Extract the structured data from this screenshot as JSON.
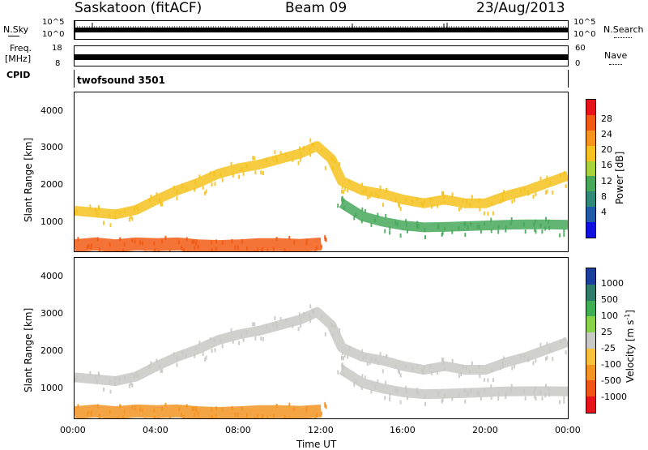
{
  "header": {
    "station": "Saskatoon (fitACF)",
    "beam": "Beam 09",
    "date": "23/Aug/2013"
  },
  "top_strip": {
    "nsky_label": "N.Sky",
    "nsearch_label": "N.Search",
    "freq_label_1": "Freq.",
    "freq_label_2": "[MHz]",
    "nave_label": "Nave",
    "cpid_label": "CPID",
    "cpid_value": "twofsound 3501",
    "noise_ticks_left": [
      "10^5",
      "10^0"
    ],
    "noise_ticks_right": [
      "10^5",
      "10^0"
    ],
    "freq_ticks": [
      "18",
      "8"
    ],
    "nave_ticks": [
      "60",
      "0"
    ]
  },
  "colorbars": {
    "power": {
      "label": "Power [dB]",
      "ticks": [
        "28",
        "24",
        "20",
        "16",
        "12",
        "8",
        "4"
      ],
      "colors": [
        "#e8121a",
        "#f25a14",
        "#f7941e",
        "#f5c21f",
        "#a8d43a",
        "#47a85a",
        "#2f8a7a",
        "#1f5ba8",
        "#1010e0"
      ]
    },
    "velocity": {
      "label": "Velocity [m s",
      "label_exp": "-1",
      "label_end": "]",
      "ticks": [
        "1000",
        "500",
        "100",
        "25",
        "-25",
        "-100",
        "-500",
        "-1000"
      ],
      "colors": [
        "#1b3f9c",
        "#2e7d6a",
        "#3fae55",
        "#88d24a",
        "#c8c8c4",
        "#f7c23a",
        "#f39423",
        "#f25416",
        "#e8121a"
      ]
    }
  },
  "chart_data": [
    {
      "type": "heatmap",
      "panel": "power",
      "ylabel": "Slant Range [km]",
      "y_ticks": [
        "4000",
        "3000",
        "2000",
        "1000"
      ],
      "ylim": [
        200,
        4500
      ],
      "xlim": [
        0,
        24
      ],
      "x_ticks": [
        "00:00",
        "04:00",
        "08:00",
        "12:00",
        "16:00",
        "20:00",
        "00:00"
      ],
      "series": [
        {
          "values": [
            [
              0,
              1300
            ],
            [
              1,
              1250
            ],
            [
              2,
              1200
            ],
            [
              3,
              1320
            ],
            [
              4,
              1600
            ],
            [
              5,
              1850
            ],
            [
              6,
              2050
            ],
            [
              7,
              2300
            ],
            [
              8,
              2450
            ],
            [
              9,
              2550
            ],
            [
              10,
              2700
            ],
            [
              11,
              2850
            ],
            [
              11.8,
              3050
            ],
            [
              12.5,
              2700
            ],
            [
              13,
              2100
            ],
            [
              14,
              1850
            ],
            [
              15,
              1750
            ],
            [
              16,
              1600
            ],
            [
              17,
              1500
            ],
            [
              18,
              1600
            ],
            [
              19,
              1500
            ],
            [
              20,
              1500
            ],
            [
              21,
              1700
            ],
            [
              22,
              1850
            ],
            [
              23,
              2050
            ],
            [
              24,
              2250
            ]
          ],
          "level": 16
        },
        {
          "values": [
            [
              13,
              1500
            ],
            [
              14,
              1150
            ],
            [
              15,
              1000
            ],
            [
              16,
              900
            ],
            [
              17,
              850
            ],
            [
              18,
              860
            ],
            [
              19,
              880
            ],
            [
              20,
              900
            ],
            [
              21,
              920
            ],
            [
              22,
              930
            ],
            [
              23,
              930
            ],
            [
              24,
              920
            ]
          ],
          "level": 10
        },
        {
          "values": [
            [
              0,
              350
            ],
            [
              1,
              400
            ],
            [
              2,
              350
            ],
            [
              3,
              400
            ],
            [
              4,
              380
            ],
            [
              5,
              400
            ],
            [
              6,
              350
            ],
            [
              7,
              330
            ],
            [
              8,
              350
            ],
            [
              9,
              380
            ],
            [
              10,
              380
            ],
            [
              11,
              360
            ],
            [
              12,
              400
            ]
          ],
          "level": 24
        }
      ]
    },
    {
      "type": "heatmap",
      "panel": "velocity",
      "ylabel": "Slant Range [km]",
      "xlabel": "Time UT",
      "y_ticks": [
        "4000",
        "3000",
        "2000",
        "1000"
      ],
      "ylim": [
        200,
        4500
      ],
      "xlim": [
        0,
        24
      ],
      "x_ticks": [
        "00:00",
        "04:00",
        "08:00",
        "12:00",
        "16:00",
        "20:00",
        "00:00"
      ],
      "series": [
        {
          "values": [
            [
              0,
              1300
            ],
            [
              1,
              1250
            ],
            [
              2,
              1200
            ],
            [
              3,
              1320
            ],
            [
              4,
              1600
            ],
            [
              5,
              1850
            ],
            [
              6,
              2050
            ],
            [
              7,
              2300
            ],
            [
              8,
              2450
            ],
            [
              9,
              2550
            ],
            [
              10,
              2700
            ],
            [
              11,
              2850
            ],
            [
              11.8,
              3050
            ],
            [
              12.5,
              2700
            ],
            [
              13,
              2100
            ],
            [
              14,
              1850
            ],
            [
              15,
              1750
            ],
            [
              16,
              1600
            ],
            [
              17,
              1500
            ],
            [
              18,
              1600
            ],
            [
              19,
              1500
            ],
            [
              20,
              1500
            ],
            [
              21,
              1700
            ],
            [
              22,
              1850
            ],
            [
              23,
              2050
            ],
            [
              24,
              2250
            ]
          ],
          "velocity": 0
        },
        {
          "values": [
            [
              13,
              1500
            ],
            [
              14,
              1150
            ],
            [
              15,
              1000
            ],
            [
              16,
              900
            ],
            [
              17,
              850
            ],
            [
              18,
              860
            ],
            [
              19,
              880
            ],
            [
              20,
              900
            ],
            [
              21,
              920
            ],
            [
              22,
              930
            ],
            [
              23,
              930
            ],
            [
              24,
              920
            ]
          ],
          "velocity": 0
        },
        {
          "values": [
            [
              0,
              350
            ],
            [
              1,
              400
            ],
            [
              2,
              350
            ],
            [
              3,
              400
            ],
            [
              4,
              380
            ],
            [
              5,
              400
            ],
            [
              6,
              350
            ],
            [
              7,
              330
            ],
            [
              8,
              350
            ],
            [
              9,
              380
            ],
            [
              10,
              380
            ],
            [
              11,
              360
            ],
            [
              12,
              400
            ]
          ],
          "velocity": -200
        }
      ]
    }
  ]
}
